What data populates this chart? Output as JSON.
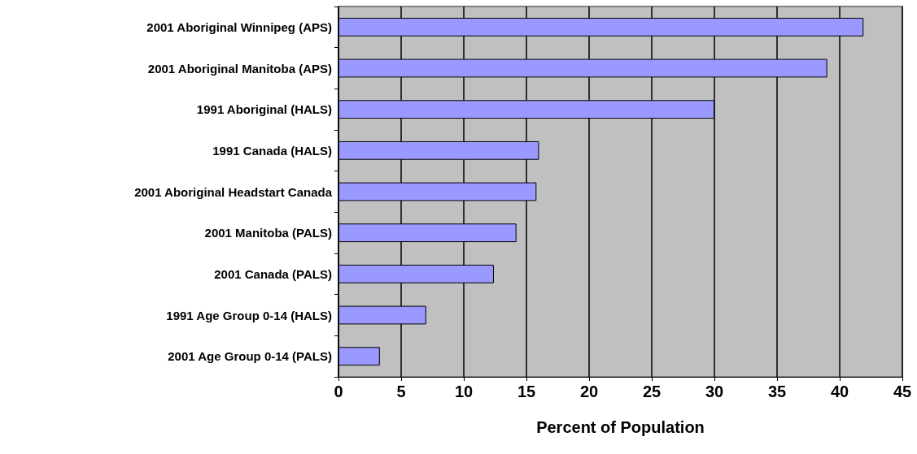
{
  "chart_data": {
    "type": "bar",
    "orientation": "horizontal",
    "xlabel": "Percent of Population",
    "categories": [
      "2001 Aboriginal Winnipeg (APS)",
      "2001 Aboriginal Manitoba (APS)",
      "1991 Aboriginal (HALS)",
      "1991 Canada (HALS)",
      "2001 Aboriginal Headstart Canada",
      "2001 Manitoba (PALS)",
      "2001 Canada (PALS)",
      "1991 Age Group 0-14 (HALS)",
      "2001 Age Group 0-14 (PALS)"
    ],
    "values": [
      41.9,
      39,
      30,
      16,
      15.8,
      14.2,
      12.4,
      7,
      3.3
    ],
    "color": "#9999ff",
    "xlim": [
      0,
      45
    ],
    "xticks": [
      0,
      5,
      10,
      15,
      20,
      25,
      30,
      35,
      40,
      45
    ],
    "grid": "x"
  }
}
